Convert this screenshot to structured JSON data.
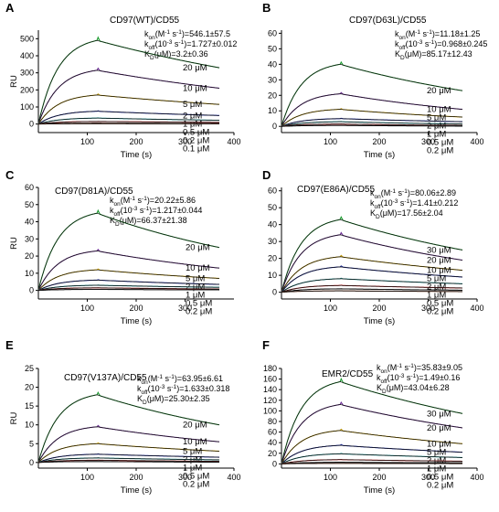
{
  "chart_data": [
    {
      "letter": "A",
      "type": "line",
      "title": "CD97(WT)/CD55",
      "xlabel": "Time (s)",
      "ylabel": "RU",
      "xlim": [
        0,
        400
      ],
      "ylim": [
        -50,
        550
      ],
      "xticks": [
        100,
        200,
        300,
        400
      ],
      "yticks": [
        0,
        100,
        200,
        300,
        400,
        500
      ],
      "injection_end_s": 120,
      "kinetics": [
        {
          "sym": "k",
          "sub": "on",
          "rest": "(M",
          "sup1": "-1",
          "mid": " s",
          "sup2": "-1",
          "val": ")=546.1±57.5"
        },
        {
          "sym": "k",
          "sub": "off",
          "rest": "(10",
          "sup1": "-3",
          "mid": " s",
          "sup2": "-1",
          "val": ")=1.727±0.012"
        },
        {
          "sym": "K",
          "sub": "D",
          "rest": "(μM)=3.2±0.36",
          "sup1": "",
          "mid": "",
          "sup2": "",
          "val": ""
        }
      ],
      "series": [
        {
          "name": "20 μM",
          "peak": 490,
          "end": 330
        },
        {
          "name": "10 μM",
          "peak": 315,
          "end": 210
        },
        {
          "name": "5 μM",
          "peak": 170,
          "end": 115
        },
        {
          "name": "2 μM",
          "peak": 75,
          "end": 50
        },
        {
          "name": "1 μM",
          "peak": 35,
          "end": 22
        },
        {
          "name": "0.5 μM",
          "peak": 15,
          "end": 10
        },
        {
          "name": "0.2 μM",
          "peak": 5,
          "end": 3
        },
        {
          "name": "0.1 μM",
          "peak": 2,
          "end": 1
        }
      ]
    },
    {
      "letter": "B",
      "type": "line",
      "title": "CD97(D63L)/CD55",
      "xlabel": "Time (s)",
      "ylabel": "",
      "xlim": [
        0,
        400
      ],
      "ylim": [
        -4,
        62
      ],
      "xticks": [
        100,
        200,
        300,
        400
      ],
      "yticks": [
        0,
        10,
        20,
        30,
        40,
        50,
        60
      ],
      "injection_end_s": 120,
      "kinetics": [
        {
          "sym": "k",
          "sub": "on",
          "rest": "(M",
          "sup1": "-1",
          "mid": " s",
          "sup2": "-1",
          "val": ")=11.18±1.25"
        },
        {
          "sym": "k",
          "sub": "off",
          "rest": "(10",
          "sup1": "-3",
          "mid": " s",
          "sup2": "-1",
          "val": ")=0.968±0.245"
        },
        {
          "sym": "K",
          "sub": "D",
          "rest": "(μM)=85.17±12.43",
          "sup1": "",
          "mid": "",
          "sup2": "",
          "val": ""
        }
      ],
      "series": [
        {
          "name": "20 μM",
          "peak": 40,
          "end": 23
        },
        {
          "name": "10 μM",
          "peak": 21,
          "end": 11
        },
        {
          "name": "5 μM",
          "peak": 11,
          "end": 6
        },
        {
          "name": "2 μM",
          "peak": 5,
          "end": 3
        },
        {
          "name": "1 μM",
          "peak": 3,
          "end": 1.5
        },
        {
          "name": "0.5 μM",
          "peak": 1.5,
          "end": 0.6
        },
        {
          "name": "0.2 μM",
          "peak": 0.6,
          "end": 0.2
        }
      ]
    },
    {
      "letter": "C",
      "type": "line",
      "title": "CD97(D81A)/CD55",
      "xlabel": "Time (s)",
      "ylabel": "RU",
      "xlim": [
        0,
        400
      ],
      "ylim": [
        -5,
        60
      ],
      "xticks": [
        100,
        200,
        300
      ],
      "yticks": [
        0,
        10,
        20,
        30,
        40,
        50,
        60
      ],
      "injection_end_s": 120,
      "kinetics": [
        {
          "sym": "k",
          "sub": "on",
          "rest": "(M",
          "sup1": "-1",
          "mid": " s",
          "sup2": "-1",
          "val": ")=20.22±5.86"
        },
        {
          "sym": "k",
          "sub": "off",
          "rest": "(10",
          "sup1": "-3",
          "mid": " s",
          "sup2": "-1",
          "val": ")=1.217±0.044"
        },
        {
          "sym": "K",
          "sub": "D",
          "rest": "(μM)=66.37±21.38",
          "sup1": "",
          "mid": "",
          "sup2": "",
          "val": ""
        }
      ],
      "series": [
        {
          "name": "20 μM",
          "peak": 45,
          "end": 25
        },
        {
          "name": "10 μM",
          "peak": 23,
          "end": 13
        },
        {
          "name": "5 μM",
          "peak": 12,
          "end": 7
        },
        {
          "name": "2 μM",
          "peak": 6,
          "end": 3.5
        },
        {
          "name": "1 μM",
          "peak": 3,
          "end": 1.8
        },
        {
          "name": "0.5 μM",
          "peak": 1.5,
          "end": 0.8
        },
        {
          "name": "0.2 μM",
          "peak": 0.6,
          "end": 0.3
        }
      ]
    },
    {
      "letter": "D",
      "type": "line",
      "title": "CD97(E86A)/CD55",
      "xlabel": "Time (s)",
      "ylabel": "",
      "xlim": [
        0,
        400
      ],
      "ylim": [
        -4,
        62
      ],
      "xticks": [
        100,
        200,
        300,
        400
      ],
      "yticks": [
        0,
        10,
        20,
        30,
        40,
        50,
        60
      ],
      "injection_end_s": 120,
      "kinetics": [
        {
          "sym": "k",
          "sub": "on",
          "rest": "(M",
          "sup1": "-1",
          "mid": " s",
          "sup2": "-1",
          "val": ")=80.06±2.89"
        },
        {
          "sym": "k",
          "sub": "off",
          "rest": "(10",
          "sup1": "-3",
          "mid": " s",
          "sup2": "-1",
          "val": ")=1.41±0.212"
        },
        {
          "sym": "K",
          "sub": "D",
          "rest": "(μM)=17.56±2.04",
          "sup1": "",
          "mid": "",
          "sup2": "",
          "val": ""
        }
      ],
      "series": [
        {
          "name": "30 μM",
          "peak": 43,
          "end": 25
        },
        {
          "name": "20 μM",
          "peak": 34,
          "end": 19
        },
        {
          "name": "10 μM",
          "peak": 21,
          "end": 13
        },
        {
          "name": "5 μM",
          "peak": 15,
          "end": 9
        },
        {
          "name": "2 μM",
          "peak": 8,
          "end": 5
        },
        {
          "name": "1 μM",
          "peak": 4,
          "end": 2.5
        },
        {
          "name": "0.5 μM",
          "peak": 2,
          "end": 1.2
        },
        {
          "name": "0.2 μM",
          "peak": 0.8,
          "end": 0.4
        }
      ]
    },
    {
      "letter": "E",
      "type": "line",
      "title": "CD97(V137A)/CD55",
      "xlabel": "Time (s)",
      "ylabel": "RU",
      "xlim": [
        0,
        400
      ],
      "ylim": [
        -1.5,
        25
      ],
      "xticks": [
        100,
        200,
        300,
        400
      ],
      "yticks": [
        0,
        5,
        10,
        15,
        20,
        25
      ],
      "injection_end_s": 120,
      "kinetics": [
        {
          "sym": "k",
          "sub": "on",
          "rest": "(M",
          "sup1": "-1",
          "mid": " s",
          "sup2": "-1",
          "val": ")=63.95±6.61"
        },
        {
          "sym": "k",
          "sub": "off",
          "rest": "(10",
          "sup1": "-3",
          "mid": " s",
          "sup2": "-1",
          "val": ")=1.633±0.318"
        },
        {
          "sym": "K",
          "sub": "D",
          "rest": "(μM)=25.30±2.35",
          "sup1": "",
          "mid": "",
          "sup2": "",
          "val": ""
        }
      ],
      "series": [
        {
          "name": "20 μM",
          "peak": 18,
          "end": 10
        },
        {
          "name": "10 μM",
          "peak": 9.5,
          "end": 5.5
        },
        {
          "name": "5 μM",
          "peak": 5,
          "end": 3
        },
        {
          "name": "2 μM",
          "peak": 2.2,
          "end": 1.4
        },
        {
          "name": "1 μM",
          "peak": 1.2,
          "end": 0.7
        },
        {
          "name": "0.5 μM",
          "peak": 0.6,
          "end": 0.3
        },
        {
          "name": "0.2 μM",
          "peak": 0.25,
          "end": 0.1
        }
      ]
    },
    {
      "letter": "F",
      "type": "line",
      "title": "EMR2/CD55",
      "xlabel": "Time (s)",
      "ylabel": "",
      "xlim": [
        0,
        400
      ],
      "ylim": [
        -8,
        180
      ],
      "xticks": [
        100,
        200,
        300,
        400
      ],
      "yticks": [
        0,
        20,
        40,
        60,
        80,
        100,
        120,
        140,
        160,
        180
      ],
      "injection_end_s": 120,
      "kinetics": [
        {
          "sym": "k",
          "sub": "on",
          "rest": "(M",
          "sup1": "-1",
          "mid": " s",
          "sup2": "-1",
          "val": ")=35.83±9.05"
        },
        {
          "sym": "k",
          "sub": "off",
          "rest": "(10",
          "sup1": "-3",
          "mid": " s",
          "sup2": "-1",
          "val": ")=1.49±0.16"
        },
        {
          "sym": "K",
          "sub": "D",
          "rest": "(μM)=43.04±6.28",
          "sup1": "",
          "mid": "",
          "sup2": "",
          "val": ""
        }
      ],
      "series": [
        {
          "name": "30 μM",
          "peak": 155,
          "end": 95
        },
        {
          "name": "20 μM",
          "peak": 112,
          "end": 68
        },
        {
          "name": "10 μM",
          "peak": 63,
          "end": 38
        },
        {
          "name": "5 μM",
          "peak": 35,
          "end": 22
        },
        {
          "name": "2 μM",
          "peak": 19,
          "end": 12
        },
        {
          "name": "1 μM",
          "peak": 8,
          "end": 5
        },
        {
          "name": "0.5 μM",
          "peak": 3,
          "end": 2
        },
        {
          "name": "0.2 μM",
          "peak": 1,
          "end": 0.5
        }
      ]
    }
  ]
}
